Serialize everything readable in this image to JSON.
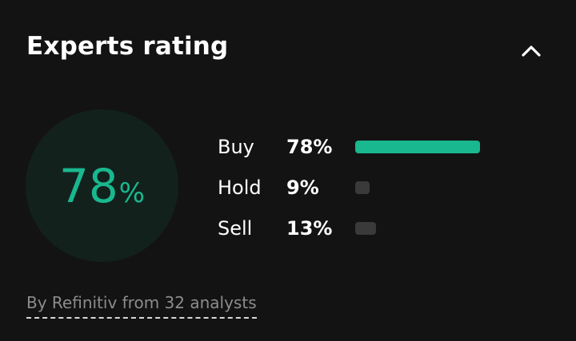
{
  "card": {
    "title": "Experts rating"
  },
  "summary": {
    "value": "78",
    "unit": "%"
  },
  "ratings": [
    {
      "label": "Buy",
      "percent_text": "78%",
      "value": 0.78,
      "color": "#19b88f"
    },
    {
      "label": "Hold",
      "percent_text": "9%",
      "value": 0.09,
      "color": "#3a3a3a"
    },
    {
      "label": "Sell",
      "percent_text": "13%",
      "value": 0.13,
      "color": "#3a3a3a"
    }
  ],
  "footer": {
    "text": "By Refinitiv from 32 analysts"
  },
  "colors": {
    "accent": "#19b88f",
    "background": "#131313",
    "circle_bg": "#13211d",
    "muted_bar": "#3a3a3a"
  },
  "icons": {
    "collapse": "chevron-up-icon"
  }
}
